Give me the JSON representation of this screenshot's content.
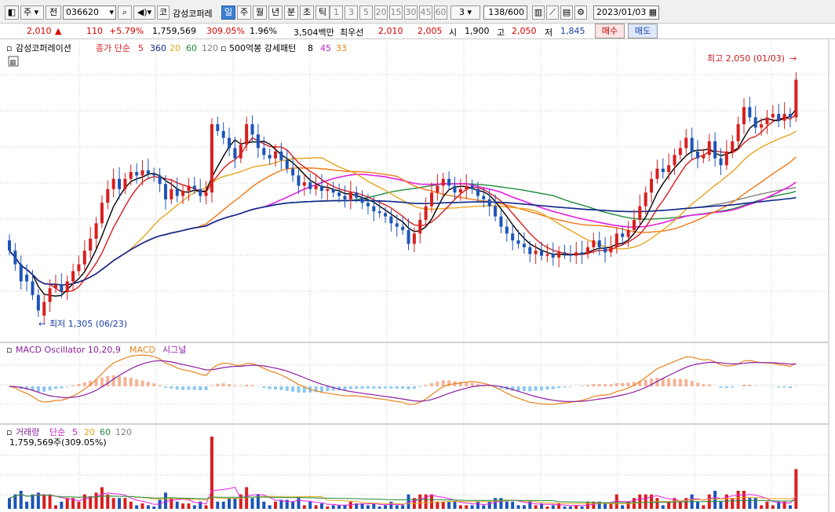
{
  "toolbar": {
    "market_code": "주",
    "prev_label": "전",
    "stock_code": "036620",
    "kor_label": "코",
    "stock_name": "감성코퍼레",
    "periods": [
      "일",
      "주",
      "월",
      "년",
      "분",
      "초",
      "틱"
    ],
    "selected_period": "일",
    "intervals": [
      "1",
      "3",
      "5",
      "20",
      "15",
      "30",
      "45",
      "60"
    ],
    "interval_value": "3",
    "count_value": "138",
    "count_total": "/600",
    "date": "2023/01/03"
  },
  "quote": {
    "price": "2,010",
    "change_arrow": "▲",
    "change": "110",
    "change_pct": "+5.79%",
    "volume": "1,759,569",
    "volume_ratio": "309.05%",
    "turnover_pct": "1.96%",
    "amount": "3,504백만",
    "best_label": "최우선",
    "best_ask": "2,010",
    "best_bid": "2,005",
    "open_label": "시",
    "open": "1,900",
    "high_label": "고",
    "high": "2,050",
    "low_label": "저",
    "low": "1,845",
    "buy_label": "매수",
    "sell_label": "매도"
  },
  "legend": {
    "price_name": "감성코퍼레이션",
    "ma_label": "종가 단순",
    "ma_periods": [
      "5",
      "360",
      "20",
      "60",
      "120"
    ],
    "pattern_label": "500억봉 강세패턴",
    "pattern_values": [
      "8",
      "45",
      "33"
    ],
    "macd_osc": "MACD Oscillator 10,20,9",
    "macd": "MACD",
    "signal": "시그널",
    "vol_label": "거래량",
    "vol_ma_label": "단순",
    "vol_ma_periods": [
      "5",
      "20",
      "60",
      "120"
    ],
    "vol_value": "1,759,569주(309.05%)"
  },
  "annotations": {
    "high": "최고 2,050 (01/03)",
    "low": "최저 1,305 (06/23)"
  },
  "colors": {
    "up": "#d81e1e",
    "down": "#1c54b8",
    "ma5": "#000000",
    "ma20": "#e6a51e",
    "ma60": "#1e8c3c",
    "ma120": "#808080",
    "ma360": "#102a8c",
    "ma_orange": "#f07814",
    "ma_magenta": "#e61ee1",
    "macd_line": "#e6841e",
    "signal_line": "#8c1ea0",
    "osc_pos": "#f5b496",
    "osc_neg": "#8cc8f0"
  },
  "chart_data": {
    "type": "candlestick",
    "period": "daily",
    "y_range": [
      1260,
      2110
    ],
    "high": {
      "value": 2050,
      "date": "01/03"
    },
    "low": {
      "value": 1305,
      "date": "06/23"
    },
    "candles": [
      [
        1540,
        1510
      ],
      [
        1510,
        1470
      ],
      [
        1470,
        1420
      ],
      [
        1440,
        1420
      ],
      [
        1420,
        1380
      ],
      [
        1380,
        1335
      ],
      [
        1320,
        1360
      ],
      [
        1360,
        1400
      ],
      [
        1400,
        1410
      ],
      [
        1410,
        1390
      ],
      [
        1390,
        1420
      ],
      [
        1420,
        1450
      ],
      [
        1450,
        1470
      ],
      [
        1470,
        1510
      ],
      [
        1510,
        1545
      ],
      [
        1545,
        1590
      ],
      [
        1590,
        1650
      ],
      [
        1650,
        1690
      ],
      [
        1690,
        1720
      ],
      [
        1720,
        1690
      ],
      [
        1690,
        1720
      ],
      [
        1720,
        1740
      ],
      [
        1740,
        1730
      ],
      [
        1730,
        1745
      ],
      [
        1745,
        1735
      ],
      [
        1735,
        1730
      ],
      [
        1730,
        1705
      ],
      [
        1705,
        1660
      ],
      [
        1660,
        1690
      ],
      [
        1690,
        1670
      ],
      [
        1670,
        1685
      ],
      [
        1685,
        1700
      ],
      [
        1700,
        1690
      ],
      [
        1690,
        1670
      ],
      [
        1670,
        1680
      ],
      [
        1680,
        1880
      ],
      [
        1880,
        1860
      ],
      [
        1860,
        1840
      ],
      [
        1840,
        1810
      ],
      [
        1810,
        1780
      ],
      [
        1780,
        1820
      ],
      [
        1820,
        1880
      ],
      [
        1880,
        1850
      ],
      [
        1850,
        1810
      ],
      [
        1810,
        1790
      ],
      [
        1790,
        1780
      ],
      [
        1780,
        1800
      ],
      [
        1800,
        1775
      ],
      [
        1775,
        1750
      ],
      [
        1750,
        1730
      ],
      [
        1730,
        1700
      ],
      [
        1700,
        1710
      ],
      [
        1710,
        1690
      ],
      [
        1690,
        1700
      ],
      [
        1700,
        1685
      ],
      [
        1685,
        1690
      ],
      [
        1690,
        1680
      ],
      [
        1680,
        1670
      ],
      [
        1670,
        1660
      ],
      [
        1660,
        1680
      ],
      [
        1680,
        1665
      ],
      [
        1665,
        1650
      ],
      [
        1650,
        1640
      ],
      [
        1640,
        1625
      ],
      [
        1625,
        1620
      ],
      [
        1620,
        1610
      ],
      [
        1610,
        1590
      ],
      [
        1590,
        1580
      ],
      [
        1580,
        1570
      ],
      [
        1570,
        1530
      ],
      [
        1530,
        1560
      ],
      [
        1560,
        1600
      ],
      [
        1600,
        1640
      ],
      [
        1640,
        1680
      ],
      [
        1680,
        1700
      ],
      [
        1700,
        1720
      ],
      [
        1720,
        1700
      ],
      [
        1700,
        1680
      ],
      [
        1680,
        1690
      ],
      [
        1690,
        1700
      ],
      [
        1700,
        1690
      ],
      [
        1690,
        1670
      ],
      [
        1670,
        1660
      ],
      [
        1660,
        1640
      ],
      [
        1640,
        1610
      ],
      [
        1610,
        1580
      ],
      [
        1580,
        1560
      ],
      [
        1560,
        1540
      ],
      [
        1540,
        1530
      ],
      [
        1530,
        1520
      ],
      [
        1520,
        1500
      ],
      [
        1500,
        1510
      ],
      [
        1510,
        1495
      ],
      [
        1495,
        1500
      ],
      [
        1500,
        1490
      ],
      [
        1490,
        1505
      ],
      [
        1505,
        1500
      ],
      [
        1500,
        1495
      ],
      [
        1495,
        1505
      ],
      [
        1505,
        1500
      ],
      [
        1500,
        1520
      ],
      [
        1520,
        1540
      ],
      [
        1540,
        1520
      ],
      [
        1520,
        1505
      ],
      [
        1505,
        1520
      ],
      [
        1520,
        1560
      ],
      [
        1560,
        1550
      ],
      [
        1550,
        1570
      ],
      [
        1570,
        1600
      ],
      [
        1600,
        1640
      ],
      [
        1640,
        1680
      ],
      [
        1680,
        1720
      ],
      [
        1720,
        1750
      ],
      [
        1750,
        1740
      ],
      [
        1740,
        1760
      ],
      [
        1760,
        1790
      ],
      [
        1790,
        1810
      ],
      [
        1810,
        1840
      ],
      [
        1840,
        1800
      ],
      [
        1800,
        1780
      ],
      [
        1780,
        1790
      ],
      [
        1790,
        1830
      ],
      [
        1830,
        1780
      ],
      [
        1780,
        1760
      ],
      [
        1760,
        1800
      ],
      [
        1800,
        1830
      ],
      [
        1830,
        1880
      ],
      [
        1880,
        1930
      ],
      [
        1930,
        1900
      ],
      [
        1900,
        1870
      ],
      [
        1870,
        1880
      ],
      [
        1880,
        1900
      ],
      [
        1900,
        1910
      ],
      [
        1910,
        1890
      ],
      [
        1890,
        1910
      ],
      [
        1910,
        1900
      ],
      [
        1900,
        2010
      ]
    ]
  }
}
